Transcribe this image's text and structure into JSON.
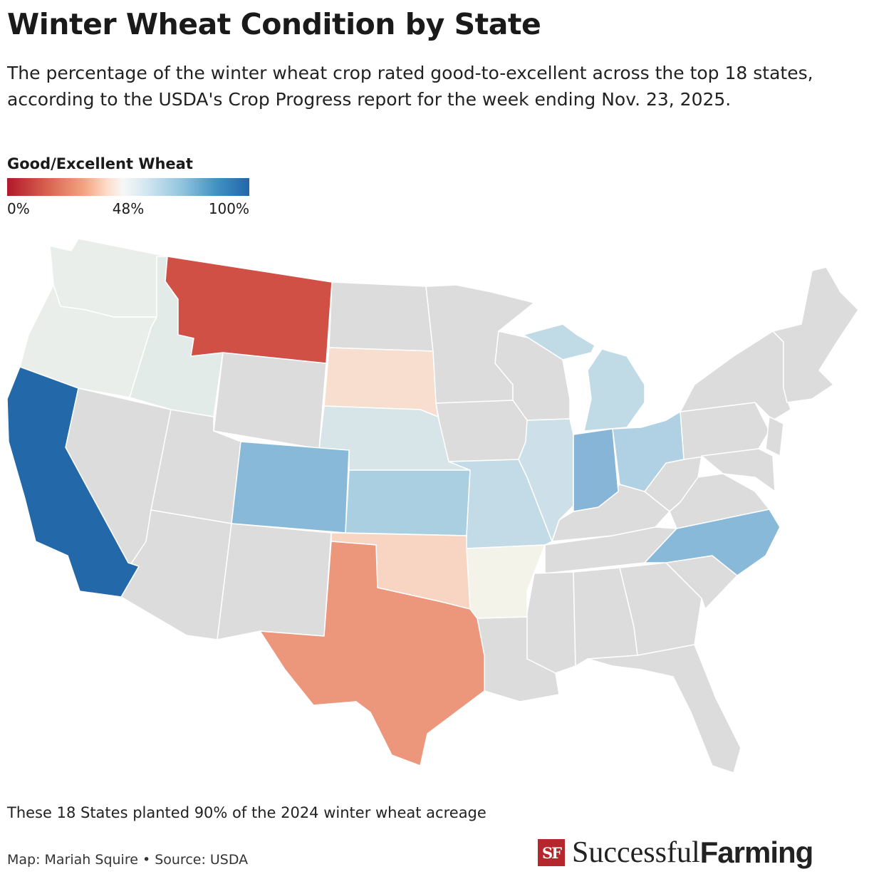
{
  "title": "Winter Wheat Condition by State",
  "subtitle": "The percentage of the winter wheat crop rated good-to-excellent across the top 18 states, according to the USDA's Crop Progress report for the week ending Nov. 23, 2025.",
  "legend": {
    "title": "Good/Excellent Wheat",
    "min_label": "0%",
    "mid_label": "48%",
    "max_label": "100%",
    "colors": [
      "#b2182b",
      "#d6604d",
      "#f4a582",
      "#fddbc7",
      "#f7f7f7",
      "#d1e5f0",
      "#92c5de",
      "#4393c3",
      "#2166ac"
    ]
  },
  "map": {
    "no_data_color": "#dcdcdc",
    "border_color": "#ffffff",
    "states": [
      {
        "id": "WA",
        "fill": "#eaeeea"
      },
      {
        "id": "OR",
        "fill": "#eaeeea"
      },
      {
        "id": "ID",
        "fill": "#e3ebe8"
      },
      {
        "id": "MT",
        "fill": "#d05046"
      },
      {
        "id": "CA",
        "fill": "#2369aa"
      },
      {
        "id": "SD",
        "fill": "#f7dece"
      },
      {
        "id": "NE",
        "fill": "#d8e5e8"
      },
      {
        "id": "CO",
        "fill": "#88b9d9"
      },
      {
        "id": "KS",
        "fill": "#aacfe1"
      },
      {
        "id": "OK",
        "fill": "#f8d5c2"
      },
      {
        "id": "TX",
        "fill": "#ec977b"
      },
      {
        "id": "MO",
        "fill": "#c3dbe6"
      },
      {
        "id": "AR",
        "fill": "#f3f3ea"
      },
      {
        "id": "IL",
        "fill": "#cde0ea"
      },
      {
        "id": "IN",
        "fill": "#86b5d7"
      },
      {
        "id": "OH",
        "fill": "#b0d1e3"
      },
      {
        "id": "MI",
        "fill": "#c0dae6"
      },
      {
        "id": "NC",
        "fill": "#88b9d9"
      },
      {
        "id": "MT_other",
        "fill": "#dcdcdc"
      }
    ]
  },
  "footer": {
    "note": "These 18 States planted 90% of the 2024 winter wheat acreage",
    "credit": "Map: Mariah Squire • Source: USDA"
  },
  "brand": {
    "logo_text": "SF",
    "name_regular": "Successful",
    "name_bold": "Farming"
  }
}
